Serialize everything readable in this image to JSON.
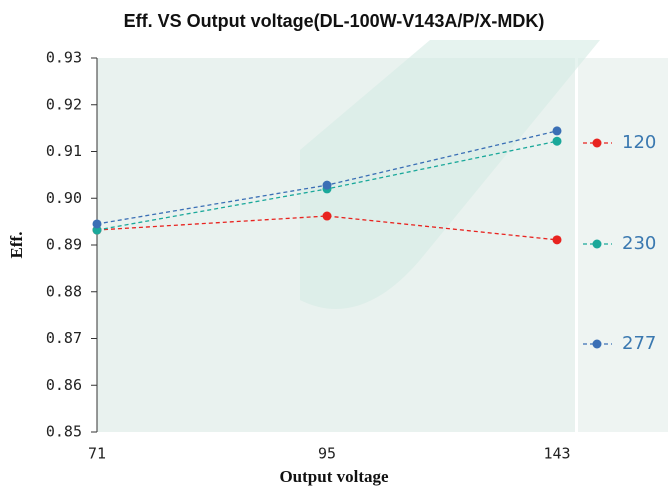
{
  "chart_data": {
    "type": "line",
    "title": "Eff. VS Output voltage(DL-100W-V143A/P/X-MDK)",
    "x_label": "Output voltage",
    "y_label": "Eff.",
    "categories": [
      "71",
      "95",
      "143"
    ],
    "series": [
      {
        "name": "120",
        "color": "#e8231f",
        "values": [
          0.8932,
          0.8962,
          0.8911
        ]
      },
      {
        "name": "230",
        "color": "#1aa89a",
        "values": [
          0.8932,
          0.902,
          0.9122
        ]
      },
      {
        "name": "277",
        "color": "#3a6fb5",
        "values": [
          0.8945,
          0.9028,
          0.9144
        ]
      }
    ],
    "ylim": [
      0.85,
      0.93
    ],
    "yticks": [
      0.85,
      0.86,
      0.87,
      0.88,
      0.89,
      {
        "value": 0.9,
        "label": "0.90"
      },
      0.91,
      0.92,
      0.93
    ],
    "legend": "right",
    "dashed": true
  }
}
